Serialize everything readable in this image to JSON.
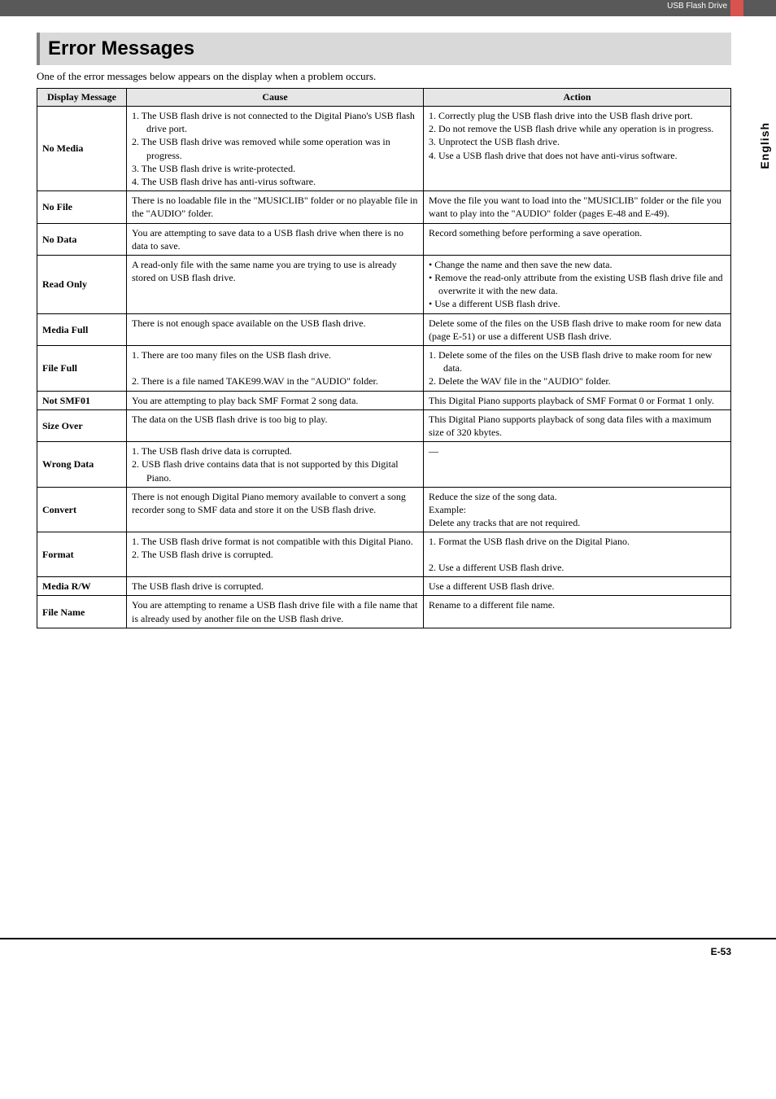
{
  "banner": {
    "label": "USB Flash Drive"
  },
  "side_tab": "English",
  "section_title": "Error Messages",
  "intro": "One of the error messages below appears on the display when a problem occurs.",
  "headers": {
    "c1": "Display Message",
    "c2": "Cause",
    "c3": "Action"
  },
  "rows": {
    "no_media": {
      "msg": "No Media",
      "cause": [
        "1.  The USB flash drive is not connected to the Digital Piano's USB flash drive port.",
        "2.  The USB flash drive was removed while some operation was in progress.",
        "3.  The USB flash drive is write-protected.",
        "4.  The USB flash drive has anti-virus software."
      ],
      "action": [
        "1.  Correctly plug the USB flash drive into the USB flash drive port.",
        "2.  Do not remove the USB flash drive while any operation is in progress.",
        "3.  Unprotect the USB flash drive.",
        "4.  Use a USB flash drive that does not have anti-virus software."
      ]
    },
    "no_file": {
      "msg": "No File",
      "cause": "There is no loadable file in the \"MUSICLIB\" folder or no playable file in the \"AUDIO\" folder.",
      "action": "Move the file you want to load into the \"MUSICLIB\" folder or the file you want to play into the \"AUDIO\" folder (pages E-48 and E-49)."
    },
    "no_data": {
      "msg": "No Data",
      "cause": "You are attempting to save data to a USB flash drive when there is no data to save.",
      "action": "Record something before performing a save operation."
    },
    "read_only": {
      "msg": "Read Only",
      "cause": "A read-only file with the same name you are trying to use is already stored on USB flash drive.",
      "action_b1": "Change the name and then save the new data.",
      "action_b2": "Remove the read-only attribute from the existing USB flash drive file and overwrite it with the new data.",
      "action_b3": "Use a different USB flash drive."
    },
    "media_full": {
      "msg": "Media Full",
      "cause": "There is not enough space available on the USB flash drive.",
      "action": "Delete some of the files on the USB flash drive to make room for new data (page E-51) or use a different USB flash drive."
    },
    "file_full": {
      "msg": "File Full",
      "cause": [
        "1.  There are too many files on the USB flash drive.",
        "",
        "2.  There is a file named TAKE99.WAV in the \"AUDIO\" folder."
      ],
      "action": [
        "1.  Delete some of the files on the USB flash drive to make room for new data.",
        "2.  Delete the WAV file in the \"AUDIO\" folder."
      ]
    },
    "not_smf01": {
      "msg": "Not SMF01",
      "cause": "You are attempting to play back SMF Format 2 song data.",
      "action": "This Digital Piano supports playback of SMF Format 0 or Format 1 only."
    },
    "size_over": {
      "msg": "Size Over",
      "cause": "The data on the USB flash drive is too big to play.",
      "action": "This Digital Piano supports playback of song data files with a maximum size of 320 kbytes."
    },
    "wrong_data": {
      "msg": "Wrong Data",
      "cause": [
        "1.  The USB flash drive data is corrupted.",
        "2.  USB flash drive contains data that is not supported by this Digital Piano."
      ],
      "action": "—"
    },
    "convert": {
      "msg": "Convert",
      "cause": "There is not enough Digital Piano memory available to convert a song recorder song to SMF data and store it on the USB flash drive.",
      "action_l1": "Reduce the size of the song data.",
      "action_l2": "Example:",
      "action_l3": "Delete any tracks that are not required."
    },
    "format": {
      "msg": "Format",
      "cause": [
        "1.  The USB flash drive format is not compatible with this Digital Piano.",
        "2.  The USB flash drive is corrupted."
      ],
      "action": [
        "1.  Format the USB flash drive on the Digital Piano.",
        "",
        "2.  Use a different USB flash drive."
      ]
    },
    "media_rw": {
      "msg": "Media R/W",
      "cause": "The USB flash drive is corrupted.",
      "action": "Use a different USB flash drive."
    },
    "file_name": {
      "msg": "File Name",
      "cause": "You are attempting to rename a USB flash drive file with a file name that is already used by another file on the USB flash drive.",
      "action": "Rename to a different file name."
    }
  },
  "page_number": "E-53"
}
